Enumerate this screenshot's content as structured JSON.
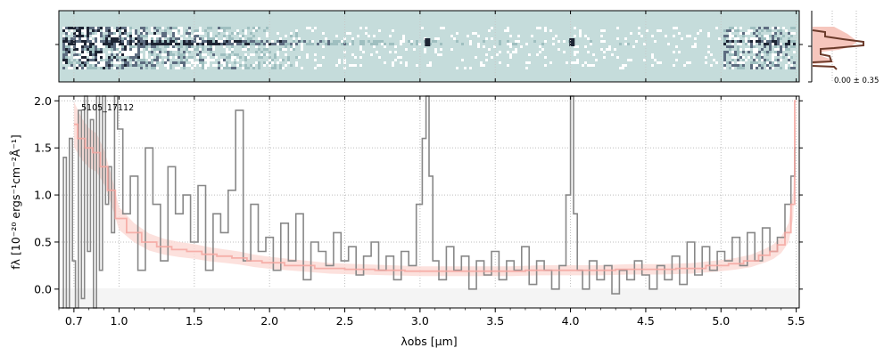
{
  "chart_data": [
    {
      "type": "heatmap",
      "panel": "2d-spectrum",
      "description_visible": "2D spectrum strip",
      "xlim": [
        0.6,
        5.52
      ],
      "x_ticks": [
        0.7,
        1.0,
        1.5,
        2.0,
        2.5,
        3.0,
        3.5,
        4.0,
        4.5,
        5.0,
        5.5
      ],
      "colors": {
        "background": "#c5dcdb",
        "dark": "#1d2433",
        "light": "#ffffff"
      },
      "bright_spots_um": [
        3.05,
        4.01
      ]
    },
    {
      "type": "line",
      "panel": "profile",
      "annotation": "0.00 ± 0.35",
      "colors": {
        "profile": "#6b3a2a",
        "band": "#f6c6bd"
      }
    },
    {
      "type": "line",
      "panel": "1d-spectrum",
      "label": "5105_17112",
      "xlabel": "λobs [μm]",
      "ylabel": "fλ [10⁻²⁰ ergs⁻¹cm⁻²Å⁻¹]",
      "xlim": [
        0.6,
        5.52
      ],
      "ylim": [
        -0.2,
        2.05
      ],
      "grid": true,
      "x_ticks": [
        0.7,
        1.0,
        1.5,
        2.0,
        2.5,
        3.0,
        3.5,
        4.0,
        4.5,
        5.0,
        5.5
      ],
      "x_tick_labels": [
        "0.7",
        "1.0",
        "1.5",
        "2.0",
        "2.5",
        "3.0",
        "3.5",
        "4.0",
        "4.5",
        "5.0",
        "5.5"
      ],
      "y_ticks": [
        0.0,
        0.5,
        1.0,
        1.5,
        2.0
      ],
      "y_tick_labels": [
        "0.0",
        "0.5",
        "1.0",
        "1.5",
        "2.0"
      ],
      "series": [
        {
          "role": "flux",
          "color": "#888888",
          "x": [
            0.62,
            0.64,
            0.66,
            0.68,
            0.7,
            0.72,
            0.74,
            0.76,
            0.78,
            0.8,
            0.82,
            0.84,
            0.86,
            0.88,
            0.9,
            0.92,
            0.94,
            0.96,
            0.98,
            1.0,
            1.05,
            1.1,
            1.15,
            1.2,
            1.25,
            1.3,
            1.35,
            1.4,
            1.45,
            1.5,
            1.55,
            1.6,
            1.65,
            1.7,
            1.75,
            1.8,
            1.85,
            1.9,
            1.95,
            2.0,
            2.05,
            2.1,
            2.15,
            2.2,
            2.25,
            2.3,
            2.35,
            2.4,
            2.45,
            2.5,
            2.55,
            2.6,
            2.65,
            2.7,
            2.75,
            2.8,
            2.85,
            2.9,
            2.95,
            3.0,
            3.03,
            3.05,
            3.07,
            3.1,
            3.15,
            3.2,
            3.25,
            3.3,
            3.35,
            3.4,
            3.45,
            3.5,
            3.55,
            3.6,
            3.65,
            3.7,
            3.75,
            3.8,
            3.85,
            3.9,
            3.95,
            3.99,
            4.01,
            4.03,
            4.06,
            4.1,
            4.15,
            4.2,
            4.25,
            4.3,
            4.35,
            4.4,
            4.45,
            4.5,
            4.55,
            4.6,
            4.65,
            4.7,
            4.75,
            4.8,
            4.85,
            4.9,
            4.95,
            5.0,
            5.05,
            5.1,
            5.15,
            5.2,
            5.25,
            5.3,
            5.35,
            5.4,
            5.45,
            5.48,
            5.5
          ],
          "y": [
            -0.2,
            1.4,
            -0.2,
            1.6,
            0.3,
            -0.2,
            1.9,
            -0.1,
            2.05,
            0.4,
            1.8,
            -0.2,
            2.05,
            0.2,
            2.05,
            0.9,
            1.3,
            0.6,
            2.05,
            1.7,
            0.8,
            1.2,
            0.2,
            1.5,
            0.9,
            0.3,
            1.3,
            0.8,
            1.0,
            0.5,
            1.1,
            0.2,
            0.8,
            0.6,
            1.05,
            1.9,
            0.3,
            0.9,
            0.4,
            0.55,
            0.2,
            0.7,
            0.3,
            0.8,
            0.1,
            0.5,
            0.4,
            0.25,
            0.6,
            0.3,
            0.45,
            0.15,
            0.35,
            0.5,
            0.2,
            0.35,
            0.1,
            0.4,
            0.25,
            0.9,
            1.6,
            2.05,
            1.2,
            0.3,
            0.1,
            0.45,
            0.2,
            0.35,
            0.0,
            0.3,
            0.15,
            0.4,
            0.1,
            0.3,
            0.2,
            0.45,
            0.05,
            0.3,
            0.2,
            0.0,
            0.25,
            1.0,
            2.05,
            0.8,
            0.2,
            0.0,
            0.3,
            0.1,
            0.25,
            -0.05,
            0.2,
            0.1,
            0.3,
            0.15,
            0.0,
            0.25,
            0.1,
            0.35,
            0.05,
            0.5,
            0.15,
            0.45,
            0.2,
            0.4,
            0.3,
            0.55,
            0.25,
            0.6,
            0.3,
            0.65,
            0.4,
            0.55,
            0.9,
            1.2,
            1.5
          ]
        },
        {
          "role": "model",
          "color": "#f4a6a0",
          "x": [
            0.7,
            0.75,
            0.8,
            0.85,
            0.9,
            0.95,
            1.0,
            1.1,
            1.2,
            1.3,
            1.4,
            1.5,
            1.6,
            1.7,
            1.8,
            1.9,
            2.0,
            2.2,
            2.4,
            2.6,
            2.8,
            3.0,
            3.2,
            3.4,
            3.6,
            3.8,
            4.0,
            4.2,
            4.4,
            4.6,
            4.8,
            5.0,
            5.1,
            5.2,
            5.3,
            5.35,
            5.4,
            5.45,
            5.48,
            5.5
          ],
          "y": [
            1.75,
            1.6,
            1.5,
            1.45,
            1.3,
            1.05,
            0.75,
            0.6,
            0.5,
            0.45,
            0.42,
            0.4,
            0.37,
            0.35,
            0.33,
            0.3,
            0.28,
            0.25,
            0.22,
            0.21,
            0.2,
            0.19,
            0.19,
            0.19,
            0.19,
            0.2,
            0.2,
            0.2,
            0.21,
            0.21,
            0.22,
            0.25,
            0.27,
            0.3,
            0.36,
            0.4,
            0.47,
            0.6,
            0.9,
            2.0
          ]
        }
      ]
    }
  ]
}
